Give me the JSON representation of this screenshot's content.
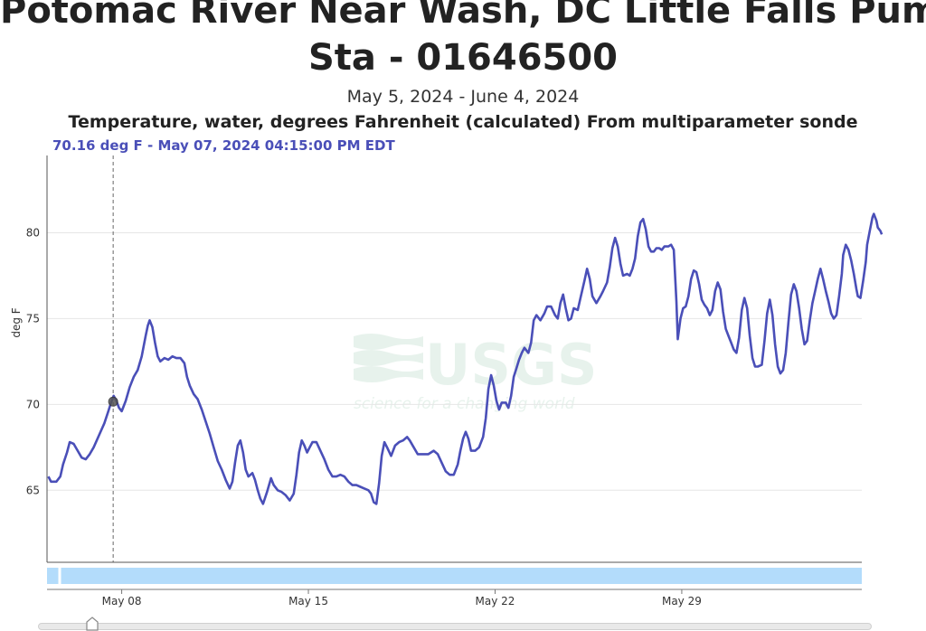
{
  "page": {
    "title_line1": "Potomac River Near Wash, DC Little Falls Pump",
    "title_line2": "Sta - 01646500",
    "date_range": "May 5, 2024 - June 4, 2024",
    "parameter": "Temperature, water, degrees Fahrenheit (calculated) From multiparameter sonde",
    "readout": "70.16 deg F - May 07, 2024 04:15:00 PM EDT",
    "watermark_logo": "USGS",
    "watermark_tagline": "science for a changing world"
  },
  "colors": {
    "series": "#4a4fb8",
    "navigator_fill": "#b3dcfb",
    "grid": "#e6e6e6"
  },
  "chart_data": {
    "type": "line",
    "title": "",
    "xlabel": "",
    "ylabel": "deg F",
    "x_unit": "days since May 5, 2024 00:00",
    "xlim": [
      0.2,
      30.75
    ],
    "ylim": [
      60.8,
      84.5
    ],
    "yticks": [
      65,
      70,
      75,
      80
    ],
    "xticks": [
      {
        "label": "May 08",
        "value": 3.0
      },
      {
        "label": "May 15",
        "value": 10.0
      },
      {
        "label": "May 22",
        "value": 17.0
      },
      {
        "label": "May 29",
        "value": 24.0
      }
    ],
    "grid": true,
    "legend": "none",
    "crosshair": {
      "x": 2.68,
      "y": 70.16
    },
    "series": [
      {
        "name": "",
        "points": [
          [
            0.25,
            65.8
          ],
          [
            0.35,
            65.5
          ],
          [
            0.55,
            65.5
          ],
          [
            0.7,
            65.8
          ],
          [
            0.8,
            66.5
          ],
          [
            0.95,
            67.2
          ],
          [
            1.05,
            67.8
          ],
          [
            1.2,
            67.7
          ],
          [
            1.35,
            67.3
          ],
          [
            1.5,
            66.9
          ],
          [
            1.65,
            66.8
          ],
          [
            1.8,
            67.1
          ],
          [
            1.95,
            67.5
          ],
          [
            2.15,
            68.2
          ],
          [
            2.35,
            68.9
          ],
          [
            2.5,
            69.6
          ],
          [
            2.6,
            70.1
          ],
          [
            2.7,
            70.5
          ],
          [
            2.8,
            70.2
          ],
          [
            2.9,
            69.8
          ],
          [
            3.0,
            69.6
          ],
          [
            3.15,
            70.2
          ],
          [
            3.3,
            71.0
          ],
          [
            3.45,
            71.6
          ],
          [
            3.6,
            72.0
          ],
          [
            3.75,
            72.8
          ],
          [
            3.9,
            74.0
          ],
          [
            3.98,
            74.6
          ],
          [
            4.05,
            74.9
          ],
          [
            4.15,
            74.5
          ],
          [
            4.25,
            73.6
          ],
          [
            4.35,
            72.8
          ],
          [
            4.45,
            72.5
          ],
          [
            4.6,
            72.7
          ],
          [
            4.75,
            72.6
          ],
          [
            4.9,
            72.8
          ],
          [
            5.05,
            72.7
          ],
          [
            5.2,
            72.7
          ],
          [
            5.35,
            72.4
          ],
          [
            5.45,
            71.6
          ],
          [
            5.55,
            71.1
          ],
          [
            5.7,
            70.6
          ],
          [
            5.85,
            70.3
          ],
          [
            6.0,
            69.7
          ],
          [
            6.15,
            69.0
          ],
          [
            6.3,
            68.3
          ],
          [
            6.45,
            67.5
          ],
          [
            6.6,
            66.7
          ],
          [
            6.75,
            66.2
          ],
          [
            6.9,
            65.6
          ],
          [
            7.05,
            65.1
          ],
          [
            7.15,
            65.5
          ],
          [
            7.25,
            66.6
          ],
          [
            7.35,
            67.6
          ],
          [
            7.45,
            67.9
          ],
          [
            7.55,
            67.2
          ],
          [
            7.65,
            66.2
          ],
          [
            7.75,
            65.8
          ],
          [
            7.9,
            66.0
          ],
          [
            8.0,
            65.6
          ],
          [
            8.1,
            65.0
          ],
          [
            8.2,
            64.5
          ],
          [
            8.3,
            64.2
          ],
          [
            8.45,
            64.9
          ],
          [
            8.6,
            65.7
          ],
          [
            8.7,
            65.3
          ],
          [
            8.85,
            65.0
          ],
          [
            9.0,
            64.9
          ],
          [
            9.15,
            64.7
          ],
          [
            9.3,
            64.4
          ],
          [
            9.45,
            64.8
          ],
          [
            9.55,
            65.9
          ],
          [
            9.65,
            67.2
          ],
          [
            9.75,
            67.9
          ],
          [
            9.85,
            67.6
          ],
          [
            9.95,
            67.2
          ],
          [
            10.05,
            67.5
          ],
          [
            10.15,
            67.8
          ],
          [
            10.3,
            67.8
          ],
          [
            10.45,
            67.3
          ],
          [
            10.6,
            66.8
          ],
          [
            10.75,
            66.2
          ],
          [
            10.9,
            65.8
          ],
          [
            11.05,
            65.8
          ],
          [
            11.2,
            65.9
          ],
          [
            11.35,
            65.8
          ],
          [
            11.5,
            65.5
          ],
          [
            11.65,
            65.3
          ],
          [
            11.8,
            65.3
          ],
          [
            11.95,
            65.2
          ],
          [
            12.1,
            65.1
          ],
          [
            12.25,
            65.0
          ],
          [
            12.35,
            64.8
          ],
          [
            12.45,
            64.3
          ],
          [
            12.55,
            64.2
          ],
          [
            12.65,
            65.4
          ],
          [
            12.75,
            67.0
          ],
          [
            12.85,
            67.8
          ],
          [
            12.95,
            67.5
          ],
          [
            13.1,
            67.0
          ],
          [
            13.25,
            67.6
          ],
          [
            13.4,
            67.8
          ],
          [
            13.55,
            67.9
          ],
          [
            13.7,
            68.1
          ],
          [
            13.8,
            67.9
          ],
          [
            13.95,
            67.5
          ],
          [
            14.1,
            67.1
          ],
          [
            14.3,
            67.1
          ],
          [
            14.5,
            67.1
          ],
          [
            14.7,
            67.3
          ],
          [
            14.85,
            67.1
          ],
          [
            15.0,
            66.6
          ],
          [
            15.15,
            66.1
          ],
          [
            15.3,
            65.9
          ],
          [
            15.45,
            65.9
          ],
          [
            15.6,
            66.5
          ],
          [
            15.7,
            67.3
          ],
          [
            15.8,
            68.0
          ],
          [
            15.9,
            68.4
          ],
          [
            16.0,
            68.0
          ],
          [
            16.1,
            67.3
          ],
          [
            16.25,
            67.3
          ],
          [
            16.4,
            67.5
          ],
          [
            16.55,
            68.1
          ],
          [
            16.65,
            69.2
          ],
          [
            16.75,
            70.9
          ],
          [
            16.85,
            71.7
          ],
          [
            16.95,
            71.1
          ],
          [
            17.05,
            70.2
          ],
          [
            17.15,
            69.7
          ],
          [
            17.25,
            70.1
          ],
          [
            17.4,
            70.1
          ],
          [
            17.5,
            69.8
          ],
          [
            17.6,
            70.5
          ],
          [
            17.7,
            71.6
          ],
          [
            17.8,
            72.1
          ],
          [
            17.9,
            72.6
          ],
          [
            18.0,
            73.0
          ],
          [
            18.1,
            73.3
          ],
          [
            18.25,
            73.0
          ],
          [
            18.35,
            73.6
          ],
          [
            18.45,
            74.9
          ],
          [
            18.55,
            75.2
          ],
          [
            18.7,
            74.9
          ],
          [
            18.85,
            75.3
          ],
          [
            18.95,
            75.7
          ],
          [
            19.1,
            75.7
          ],
          [
            19.25,
            75.2
          ],
          [
            19.35,
            75.0
          ],
          [
            19.45,
            75.9
          ],
          [
            19.55,
            76.4
          ],
          [
            19.65,
            75.6
          ],
          [
            19.75,
            74.9
          ],
          [
            19.85,
            75.0
          ],
          [
            19.95,
            75.6
          ],
          [
            20.1,
            75.5
          ],
          [
            20.2,
            76.2
          ],
          [
            20.35,
            77.2
          ],
          [
            20.45,
            77.9
          ],
          [
            20.55,
            77.3
          ],
          [
            20.65,
            76.3
          ],
          [
            20.8,
            75.9
          ],
          [
            20.95,
            76.3
          ],
          [
            21.05,
            76.6
          ],
          [
            21.2,
            77.1
          ],
          [
            21.3,
            78.0
          ],
          [
            21.4,
            79.1
          ],
          [
            21.5,
            79.7
          ],
          [
            21.6,
            79.2
          ],
          [
            21.7,
            78.2
          ],
          [
            21.8,
            77.5
          ],
          [
            21.95,
            77.6
          ],
          [
            22.05,
            77.5
          ],
          [
            22.15,
            77.9
          ],
          [
            22.25,
            78.5
          ],
          [
            22.35,
            79.8
          ],
          [
            22.45,
            80.6
          ],
          [
            22.55,
            80.8
          ],
          [
            22.65,
            80.2
          ],
          [
            22.75,
            79.2
          ],
          [
            22.85,
            78.9
          ],
          [
            22.95,
            78.9
          ],
          [
            23.05,
            79.1
          ],
          [
            23.15,
            79.1
          ],
          [
            23.25,
            79.0
          ],
          [
            23.35,
            79.2
          ],
          [
            23.5,
            79.2
          ],
          [
            23.6,
            79.3
          ],
          [
            23.7,
            79.0
          ],
          [
            23.8,
            76.0
          ],
          [
            23.85,
            73.8
          ],
          [
            23.95,
            75.0
          ],
          [
            24.05,
            75.6
          ],
          [
            24.15,
            75.7
          ],
          [
            24.25,
            76.3
          ],
          [
            24.35,
            77.3
          ],
          [
            24.45,
            77.8
          ],
          [
            24.55,
            77.7
          ],
          [
            24.65,
            77.0
          ],
          [
            24.75,
            76.1
          ],
          [
            24.85,
            75.8
          ],
          [
            24.95,
            75.6
          ],
          [
            25.05,
            75.2
          ],
          [
            25.15,
            75.5
          ],
          [
            25.25,
            76.6
          ],
          [
            25.35,
            77.1
          ],
          [
            25.45,
            76.7
          ],
          [
            25.55,
            75.4
          ],
          [
            25.65,
            74.4
          ],
          [
            25.75,
            74.0
          ],
          [
            25.85,
            73.6
          ],
          [
            25.95,
            73.2
          ],
          [
            26.05,
            73.0
          ],
          [
            26.15,
            73.9
          ],
          [
            26.25,
            75.5
          ],
          [
            26.35,
            76.2
          ],
          [
            26.45,
            75.6
          ],
          [
            26.55,
            74.0
          ],
          [
            26.65,
            72.7
          ],
          [
            26.75,
            72.2
          ],
          [
            26.85,
            72.2
          ],
          [
            27.0,
            72.3
          ],
          [
            27.1,
            73.7
          ],
          [
            27.2,
            75.3
          ],
          [
            27.3,
            76.1
          ],
          [
            27.4,
            75.2
          ],
          [
            27.5,
            73.5
          ],
          [
            27.6,
            72.2
          ],
          [
            27.7,
            71.8
          ],
          [
            27.8,
            72.0
          ],
          [
            27.9,
            73.0
          ],
          [
            28.0,
            74.8
          ],
          [
            28.1,
            76.4
          ],
          [
            28.2,
            77.0
          ],
          [
            28.3,
            76.6
          ],
          [
            28.4,
            75.6
          ],
          [
            28.5,
            74.4
          ],
          [
            28.6,
            73.5
          ],
          [
            28.7,
            73.7
          ],
          [
            28.8,
            74.9
          ],
          [
            28.9,
            75.9
          ],
          [
            29.0,
            76.6
          ],
          [
            29.1,
            77.3
          ],
          [
            29.2,
            77.9
          ],
          [
            29.3,
            77.3
          ],
          [
            29.4,
            76.6
          ],
          [
            29.5,
            76.0
          ],
          [
            29.6,
            75.3
          ],
          [
            29.7,
            75.0
          ],
          [
            29.8,
            75.2
          ],
          [
            29.9,
            76.3
          ],
          [
            30.0,
            77.6
          ],
          [
            30.05,
            78.7
          ],
          [
            30.15,
            79.3
          ],
          [
            30.25,
            79.0
          ],
          [
            30.35,
            78.4
          ],
          [
            30.45,
            77.6
          ],
          [
            30.55,
            76.7
          ],
          [
            30.6,
            76.3
          ],
          [
            30.7,
            76.2
          ],
          [
            30.8,
            77.2
          ],
          [
            30.9,
            78.3
          ],
          [
            30.95,
            79.3
          ],
          [
            31.05,
            80.1
          ],
          [
            31.15,
            80.9
          ],
          [
            31.2,
            81.1
          ],
          [
            31.3,
            80.7
          ],
          [
            31.35,
            80.3
          ],
          [
            31.45,
            80.1
          ],
          [
            31.5,
            79.9
          ]
        ]
      }
    ]
  }
}
